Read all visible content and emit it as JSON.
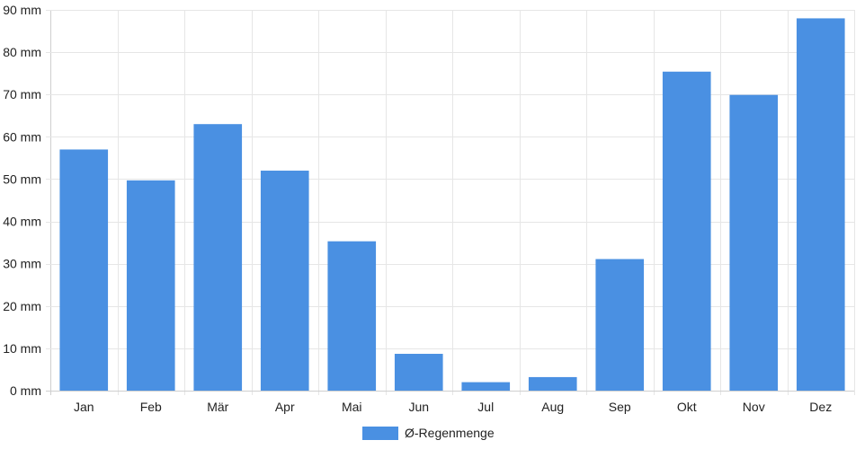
{
  "chart_data": {
    "type": "bar",
    "title": "",
    "xlabel": "",
    "ylabel": "",
    "categories": [
      "Jan",
      "Feb",
      "Mär",
      "Apr",
      "Mai",
      "Jun",
      "Jul",
      "Aug",
      "Sep",
      "Okt",
      "Nov",
      "Dez"
    ],
    "series": [
      {
        "name": "Ø-Regenmenge",
        "color": "#4a90e2",
        "values": [
          57,
          49.7,
          63,
          52,
          35.3,
          8.7,
          2,
          3.2,
          31.1,
          75.4,
          69.9,
          88
        ]
      }
    ],
    "ylim": [
      0,
      90
    ],
    "yticks": [
      {
        "value": 0,
        "label": "0 mm"
      },
      {
        "value": 10,
        "label": "10 mm"
      },
      {
        "value": 20,
        "label": "20 mm"
      },
      {
        "value": 30,
        "label": "30 mm"
      },
      {
        "value": 40,
        "label": "40 mm"
      },
      {
        "value": 50,
        "label": "50 mm"
      },
      {
        "value": 60,
        "label": "60 mm"
      },
      {
        "value": 70,
        "label": "70 mm"
      },
      {
        "value": 80,
        "label": "80 mm"
      },
      {
        "value": 90,
        "label": "90 mm"
      }
    ],
    "grid": true,
    "legend": "bottom-center"
  }
}
